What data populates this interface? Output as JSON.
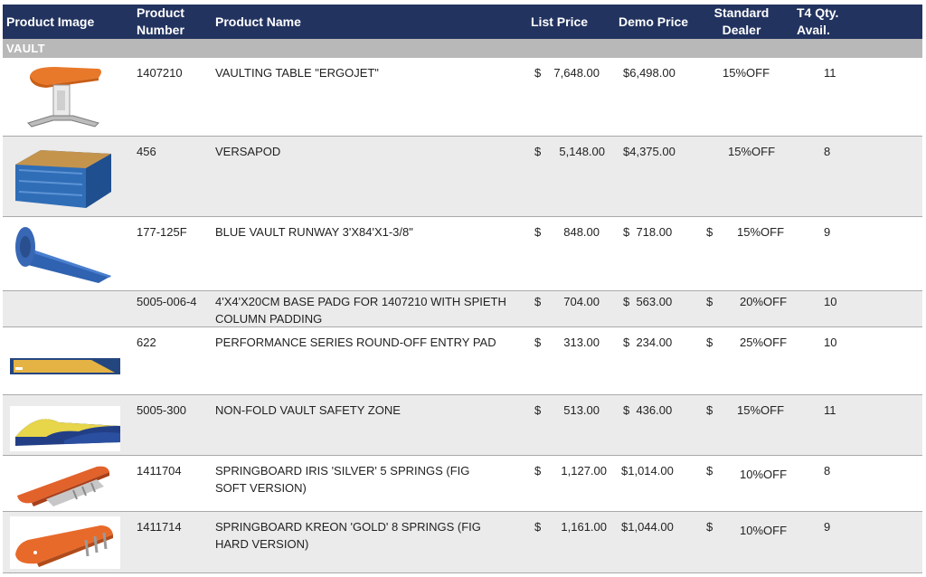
{
  "header": {
    "col_image": "Product Image",
    "col_number_line1": "Product",
    "col_number_line2": "Number",
    "col_name": "Product Name",
    "col_list": "List Price",
    "col_demo": "Demo Price",
    "col_dealer_line1": "Standard",
    "col_dealer_line2": "Dealer",
    "col_qty_line1": "T4 Qty.",
    "col_qty_line2": "Avail."
  },
  "category": "VAULT",
  "rows": [
    {
      "number": "1407210",
      "name": "VAULTING TABLE \"ERGOJET\"",
      "list_cur": "$",
      "list": "7,648.00",
      "demo": "$6,498.00",
      "dealer_cur": "",
      "dealer": "15%OFF",
      "qty": "11",
      "image_icon": "vaulting-table-icon"
    },
    {
      "number": "456",
      "name": "VERSAPOD",
      "list_cur": "$",
      "list": "5,148.00",
      "demo": "$4,375.00",
      "dealer_cur": "",
      "dealer": "15%OFF",
      "qty": "8",
      "image_icon": "versapod-icon"
    },
    {
      "number": "177-125F",
      "name": "BLUE VAULT RUNWAY 3'X84'X1-3/8\"",
      "list_cur": "$",
      "list": "848.00",
      "demo": "$  718.00",
      "dealer_cur": "$",
      "dealer": "15%OFF",
      "qty": "9",
      "image_icon": "runway-roll-icon"
    },
    {
      "number": "5005-006-4",
      "name": "4'X4'X20CM BASE PADG FOR 1407210 WITH SPIETH COLUMN PADDING",
      "list_cur": "$",
      "list": "704.00",
      "demo": "$  563.00",
      "dealer_cur": "$",
      "dealer": "20%OFF",
      "qty": "10",
      "image_icon": ""
    },
    {
      "number": "622",
      "name": "PERFORMANCE SERIES ROUND-OFF ENTRY PAD",
      "list_cur": "$",
      "list": "313.00",
      "demo": "$  234.00",
      "dealer_cur": "$",
      "dealer": "25%OFF",
      "qty": "10",
      "image_icon": "entry-pad-icon"
    },
    {
      "number": "5005-300",
      "name": "NON-FOLD VAULT SAFETY ZONE",
      "list_cur": "$",
      "list": "513.00",
      "demo": "$  436.00",
      "dealer_cur": "$",
      "dealer": "15%OFF",
      "qty": "11",
      "image_icon": "safety-zone-icon"
    },
    {
      "number": "1411704",
      "name": "SPRINGBOARD IRIS 'SILVER' 5 SPRINGS (FIG SOFT VERSION)",
      "list_cur": "$",
      "list": "1,127.00",
      "demo": "$1,014.00",
      "dealer_cur": "$",
      "dealer": "10%OFF",
      "qty": "8",
      "image_icon": "springboard-icon"
    },
    {
      "number": "1411714",
      "name": "SPRINGBOARD KREON 'GOLD' 8 SPRINGS (FIG HARD VERSION)",
      "list_cur": "$",
      "list": "1,161.00",
      "demo": "$1,044.00",
      "dealer_cur": "$",
      "dealer": "10%OFF",
      "qty": "9",
      "image_icon": "springboard-icon"
    }
  ],
  "colors": {
    "header_bg": "#22335f",
    "category_bg": "#b8b8b8",
    "alt_row_bg": "#ebebeb",
    "grid_line": "#a9a9a9"
  }
}
